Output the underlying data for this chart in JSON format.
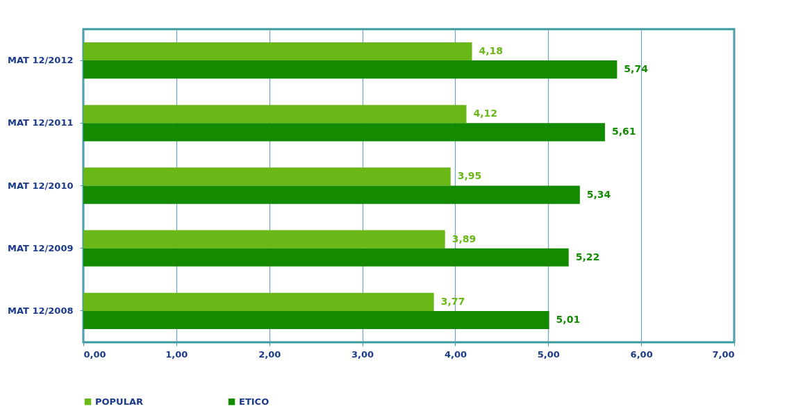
{
  "chart_data": {
    "type": "bar",
    "orientation": "horizontal",
    "categories": [
      "MAT 12/2012",
      "MAT 12/2011",
      "MAT 12/2010",
      "MAT 12/2009",
      "MAT 12/2008"
    ],
    "series": [
      {
        "name": "POPULAR",
        "color": "#6ab818",
        "values": [
          4.18,
          4.12,
          3.95,
          3.89,
          3.77
        ],
        "value_labels": [
          "4,18",
          "4,12",
          "3,95",
          "3,89",
          "3,77"
        ]
      },
      {
        "name": "ETICO",
        "color": "#138a00",
        "values": [
          5.74,
          5.61,
          5.34,
          5.22,
          5.01
        ],
        "value_labels": [
          "5,74",
          "5,61",
          "5,34",
          "5,22",
          "5,01"
        ]
      }
    ],
    "xlim": [
      0,
      7
    ],
    "xticks": [
      {
        "value": 0,
        "label": "0,00"
      },
      {
        "value": 1,
        "label": "1,00"
      },
      {
        "value": 2,
        "label": "2,00"
      },
      {
        "value": 3,
        "label": "3,00"
      },
      {
        "value": 4,
        "label": "4,00"
      },
      {
        "value": 5,
        "label": "5,00"
      },
      {
        "value": 6,
        "label": "6,00"
      },
      {
        "value": 7,
        "label": "7,00"
      }
    ],
    "grid": "x",
    "legend": "bottom"
  }
}
